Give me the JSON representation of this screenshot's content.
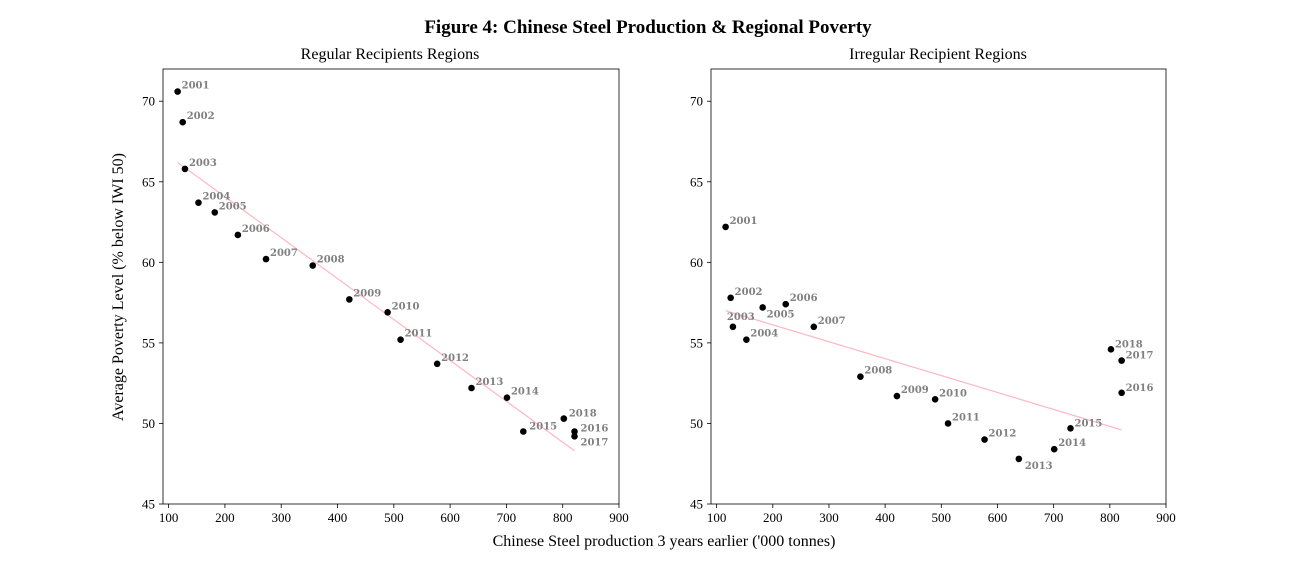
{
  "figure": {
    "title": "Figure 4: Chinese Steel Production & Regional Poverty",
    "xlabel": "Chinese Steel production 3 years earlier ('000 tonnes)",
    "ylabel": "Average Poverty Level (% below IWI 50)"
  },
  "colors": {
    "points": "#000000",
    "fit_line": "#ffb6c1",
    "labels": "#808080",
    "axes": "#000000"
  },
  "chart_data": [
    {
      "type": "scatter",
      "title": "Regular Recipients Regions",
      "xlim": [
        90,
        900
      ],
      "ylim": [
        45,
        72
      ],
      "xticks": [
        100,
        200,
        300,
        400,
        500,
        600,
        700,
        800,
        900
      ],
      "yticks": [
        45,
        50,
        55,
        60,
        65,
        70
      ],
      "grid": false,
      "points": [
        {
          "label": "2001",
          "x": 116,
          "y": 70.6
        },
        {
          "label": "2002",
          "x": 125,
          "y": 68.7
        },
        {
          "label": "2003",
          "x": 129,
          "y": 65.8
        },
        {
          "label": "2004",
          "x": 153,
          "y": 63.7
        },
        {
          "label": "2005",
          "x": 182,
          "y": 63.1
        },
        {
          "label": "2006",
          "x": 223,
          "y": 61.7
        },
        {
          "label": "2007",
          "x": 273,
          "y": 60.2
        },
        {
          "label": "2008",
          "x": 356,
          "y": 59.8
        },
        {
          "label": "2009",
          "x": 421,
          "y": 57.7
        },
        {
          "label": "2010",
          "x": 489,
          "y": 56.9
        },
        {
          "label": "2011",
          "x": 512,
          "y": 55.2
        },
        {
          "label": "2012",
          "x": 577,
          "y": 53.7
        },
        {
          "label": "2013",
          "x": 638,
          "y": 52.2
        },
        {
          "label": "2014",
          "x": 701,
          "y": 51.6
        },
        {
          "label": "2015",
          "x": 730,
          "y": 49.5
        },
        {
          "label": "2016",
          "x": 821,
          "y": 49.5
        },
        {
          "label": "2017",
          "x": 821,
          "y": 49.2
        },
        {
          "label": "2018",
          "x": 802,
          "y": 50.3
        }
      ],
      "fit": {
        "x": [
          116,
          821
        ],
        "y": [
          66.2,
          48.3
        ]
      }
    },
    {
      "type": "scatter",
      "title": "Irregular Recipient Regions",
      "xlim": [
        90,
        900
      ],
      "ylim": [
        45,
        72
      ],
      "xticks": [
        100,
        200,
        300,
        400,
        500,
        600,
        700,
        800,
        900
      ],
      "yticks": [
        45,
        50,
        55,
        60,
        65,
        70
      ],
      "grid": false,
      "points": [
        {
          "label": "2001",
          "x": 116,
          "y": 62.2
        },
        {
          "label": "2002",
          "x": 125,
          "y": 57.8
        },
        {
          "label": "2003",
          "x": 129,
          "y": 56.0
        },
        {
          "label": "2004",
          "x": 153,
          "y": 55.2
        },
        {
          "label": "2005",
          "x": 182,
          "y": 57.2
        },
        {
          "label": "2006",
          "x": 223,
          "y": 57.4
        },
        {
          "label": "2007",
          "x": 273,
          "y": 56.0
        },
        {
          "label": "2008",
          "x": 356,
          "y": 52.9
        },
        {
          "label": "2009",
          "x": 421,
          "y": 51.7
        },
        {
          "label": "2010",
          "x": 489,
          "y": 51.5
        },
        {
          "label": "2011",
          "x": 512,
          "y": 50.0
        },
        {
          "label": "2012",
          "x": 577,
          "y": 49.0
        },
        {
          "label": "2013",
          "x": 638,
          "y": 47.8
        },
        {
          "label": "2014",
          "x": 701,
          "y": 48.4
        },
        {
          "label": "2015",
          "x": 730,
          "y": 49.7
        },
        {
          "label": "2016",
          "x": 821,
          "y": 51.9
        },
        {
          "label": "2017",
          "x": 821,
          "y": 53.9
        },
        {
          "label": "2018",
          "x": 802,
          "y": 54.6
        }
      ],
      "fit": {
        "x": [
          116,
          821
        ],
        "y": [
          57.0,
          49.6
        ]
      }
    }
  ]
}
